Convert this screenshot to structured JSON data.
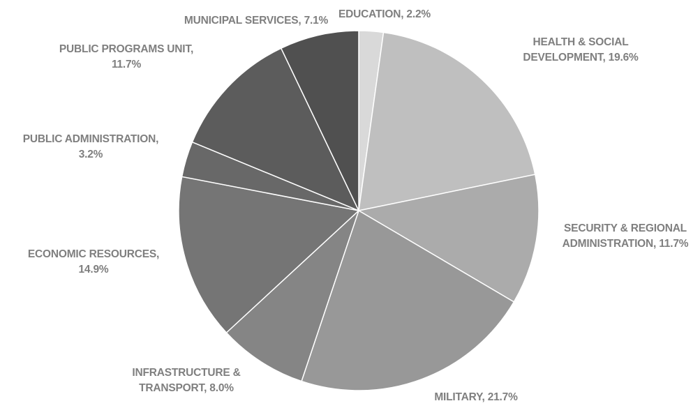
{
  "chart_data": {
    "type": "pie",
    "title": "",
    "start_angle_deg": 0,
    "direction": "clockwise",
    "slice_border_color": "#ffffff",
    "label_color": "#7f7f7f",
    "slices": [
      {
        "name": "EDUCATION",
        "value": 2.2,
        "label_lines": [
          "EDUCATION, 2.2%"
        ],
        "color": "#d9d9d9"
      },
      {
        "name": "HEALTH & SOCIAL DEVELOPMENT",
        "value": 19.6,
        "label_lines": [
          "HEALTH & SOCIAL",
          "DEVELOPMENT, 19.6%"
        ],
        "color": "#bfbfbf"
      },
      {
        "name": "SECURITY & REGIONAL ADMINISTRATION",
        "value": 11.7,
        "label_lines": [
          "SECURITY & REGIONAL",
          "ADMINISTRATION, 11.7%"
        ],
        "color": "#ababab"
      },
      {
        "name": "MILITARY",
        "value": 21.7,
        "label_lines": [
          "MILITARY, 21.7%"
        ],
        "color": "#989898"
      },
      {
        "name": "INFRASTRUCTURE & TRANSPORT",
        "value": 8.0,
        "label_lines": [
          "INFRASTRUCTURE &",
          "TRANSPORT, 8.0%"
        ],
        "color": "#858585"
      },
      {
        "name": "ECONOMIC RESOURCES",
        "value": 14.9,
        "label_lines": [
          "ECONOMIC RESOURCES,",
          "14.9%"
        ],
        "color": "#757575"
      },
      {
        "name": "PUBLIC ADMINISTRATION",
        "value": 3.2,
        "label_lines": [
          "PUBLIC ADMINISTRATION,",
          "3.2%"
        ],
        "color": "#686868"
      },
      {
        "name": "PUBLIC PROGRAMS UNIT",
        "value": 11.7,
        "label_lines": [
          "PUBLIC PROGRAMS UNIT,",
          "11.7%"
        ],
        "color": "#5c5c5c"
      },
      {
        "name": "MUNICIPAL SERVICES",
        "value": 7.1,
        "label_lines": [
          "MUNICIPAL SERVICES, 7.1%"
        ],
        "color": "#505050"
      }
    ]
  }
}
